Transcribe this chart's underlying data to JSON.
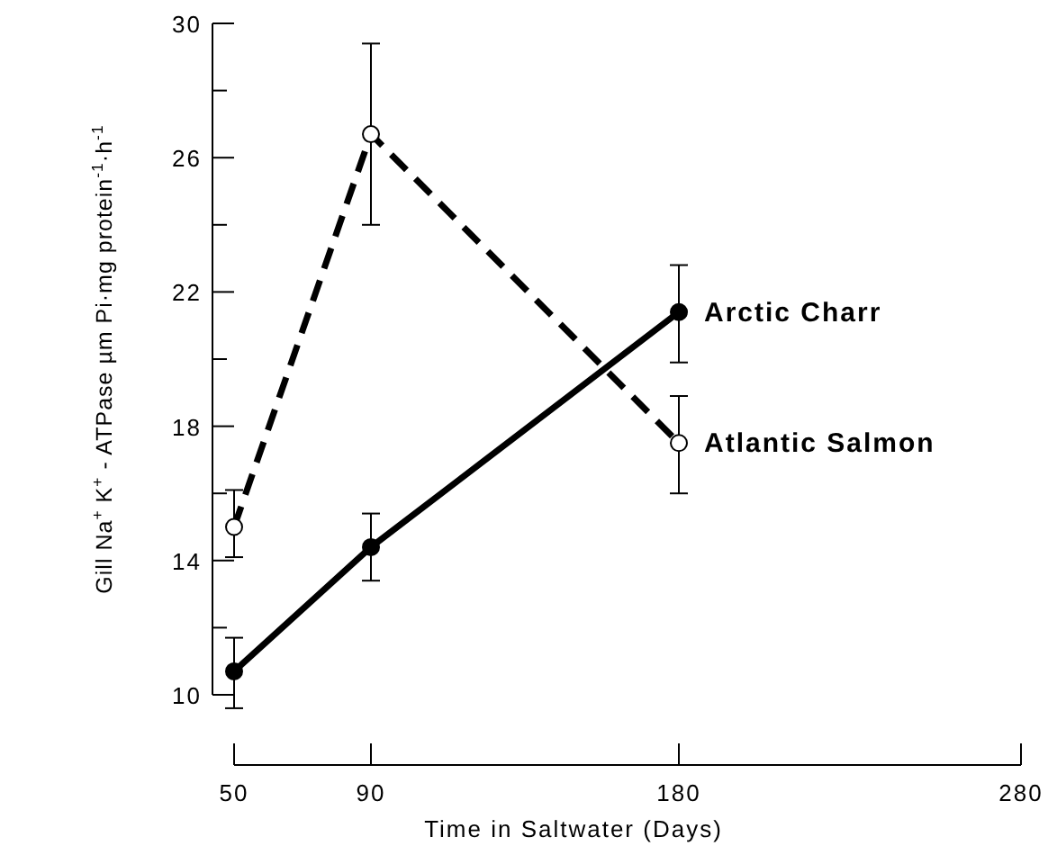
{
  "chart_data": {
    "type": "line",
    "xlabel": "Time in Saltwater (Days)",
    "ylabel": "Gill Na$^{+}$ K$^{+}$ - ATPase µm Pi·mg protein$^{-1}$·h$^{-1}$",
    "x": [
      50,
      90,
      180
    ],
    "xlim": [
      50,
      280
    ],
    "xticks": [
      50,
      90,
      180,
      280
    ],
    "ylim": [
      10,
      30
    ],
    "yticks": [
      10,
      {
        "value": 12,
        "label": null
      },
      14,
      {
        "value": 16,
        "label": null
      },
      18,
      {
        "value": 20,
        "label": null
      },
      22,
      {
        "value": 24,
        "label": null
      },
      26,
      {
        "value": 28,
        "label": null
      },
      30
    ],
    "grid": false,
    "marker": "circle",
    "series": [
      {
        "name": "Atlantic Salmon",
        "color": "#000000",
        "line_style": "dashed",
        "values": [
          15.0,
          26.7,
          17.5
        ],
        "errors": [
          [
            14.1,
            16.1
          ],
          [
            24.0,
            29.4
          ],
          [
            16.0,
            18.9
          ]
        ]
      },
      {
        "name": "Arctic Charr",
        "color": "#000000",
        "line_style": "solid",
        "values": [
          10.7,
          14.4,
          21.4
        ],
        "errors": [
          [
            9.6,
            11.7
          ],
          [
            13.4,
            15.4
          ],
          [
            19.9,
            22.8
          ]
        ]
      }
    ]
  }
}
